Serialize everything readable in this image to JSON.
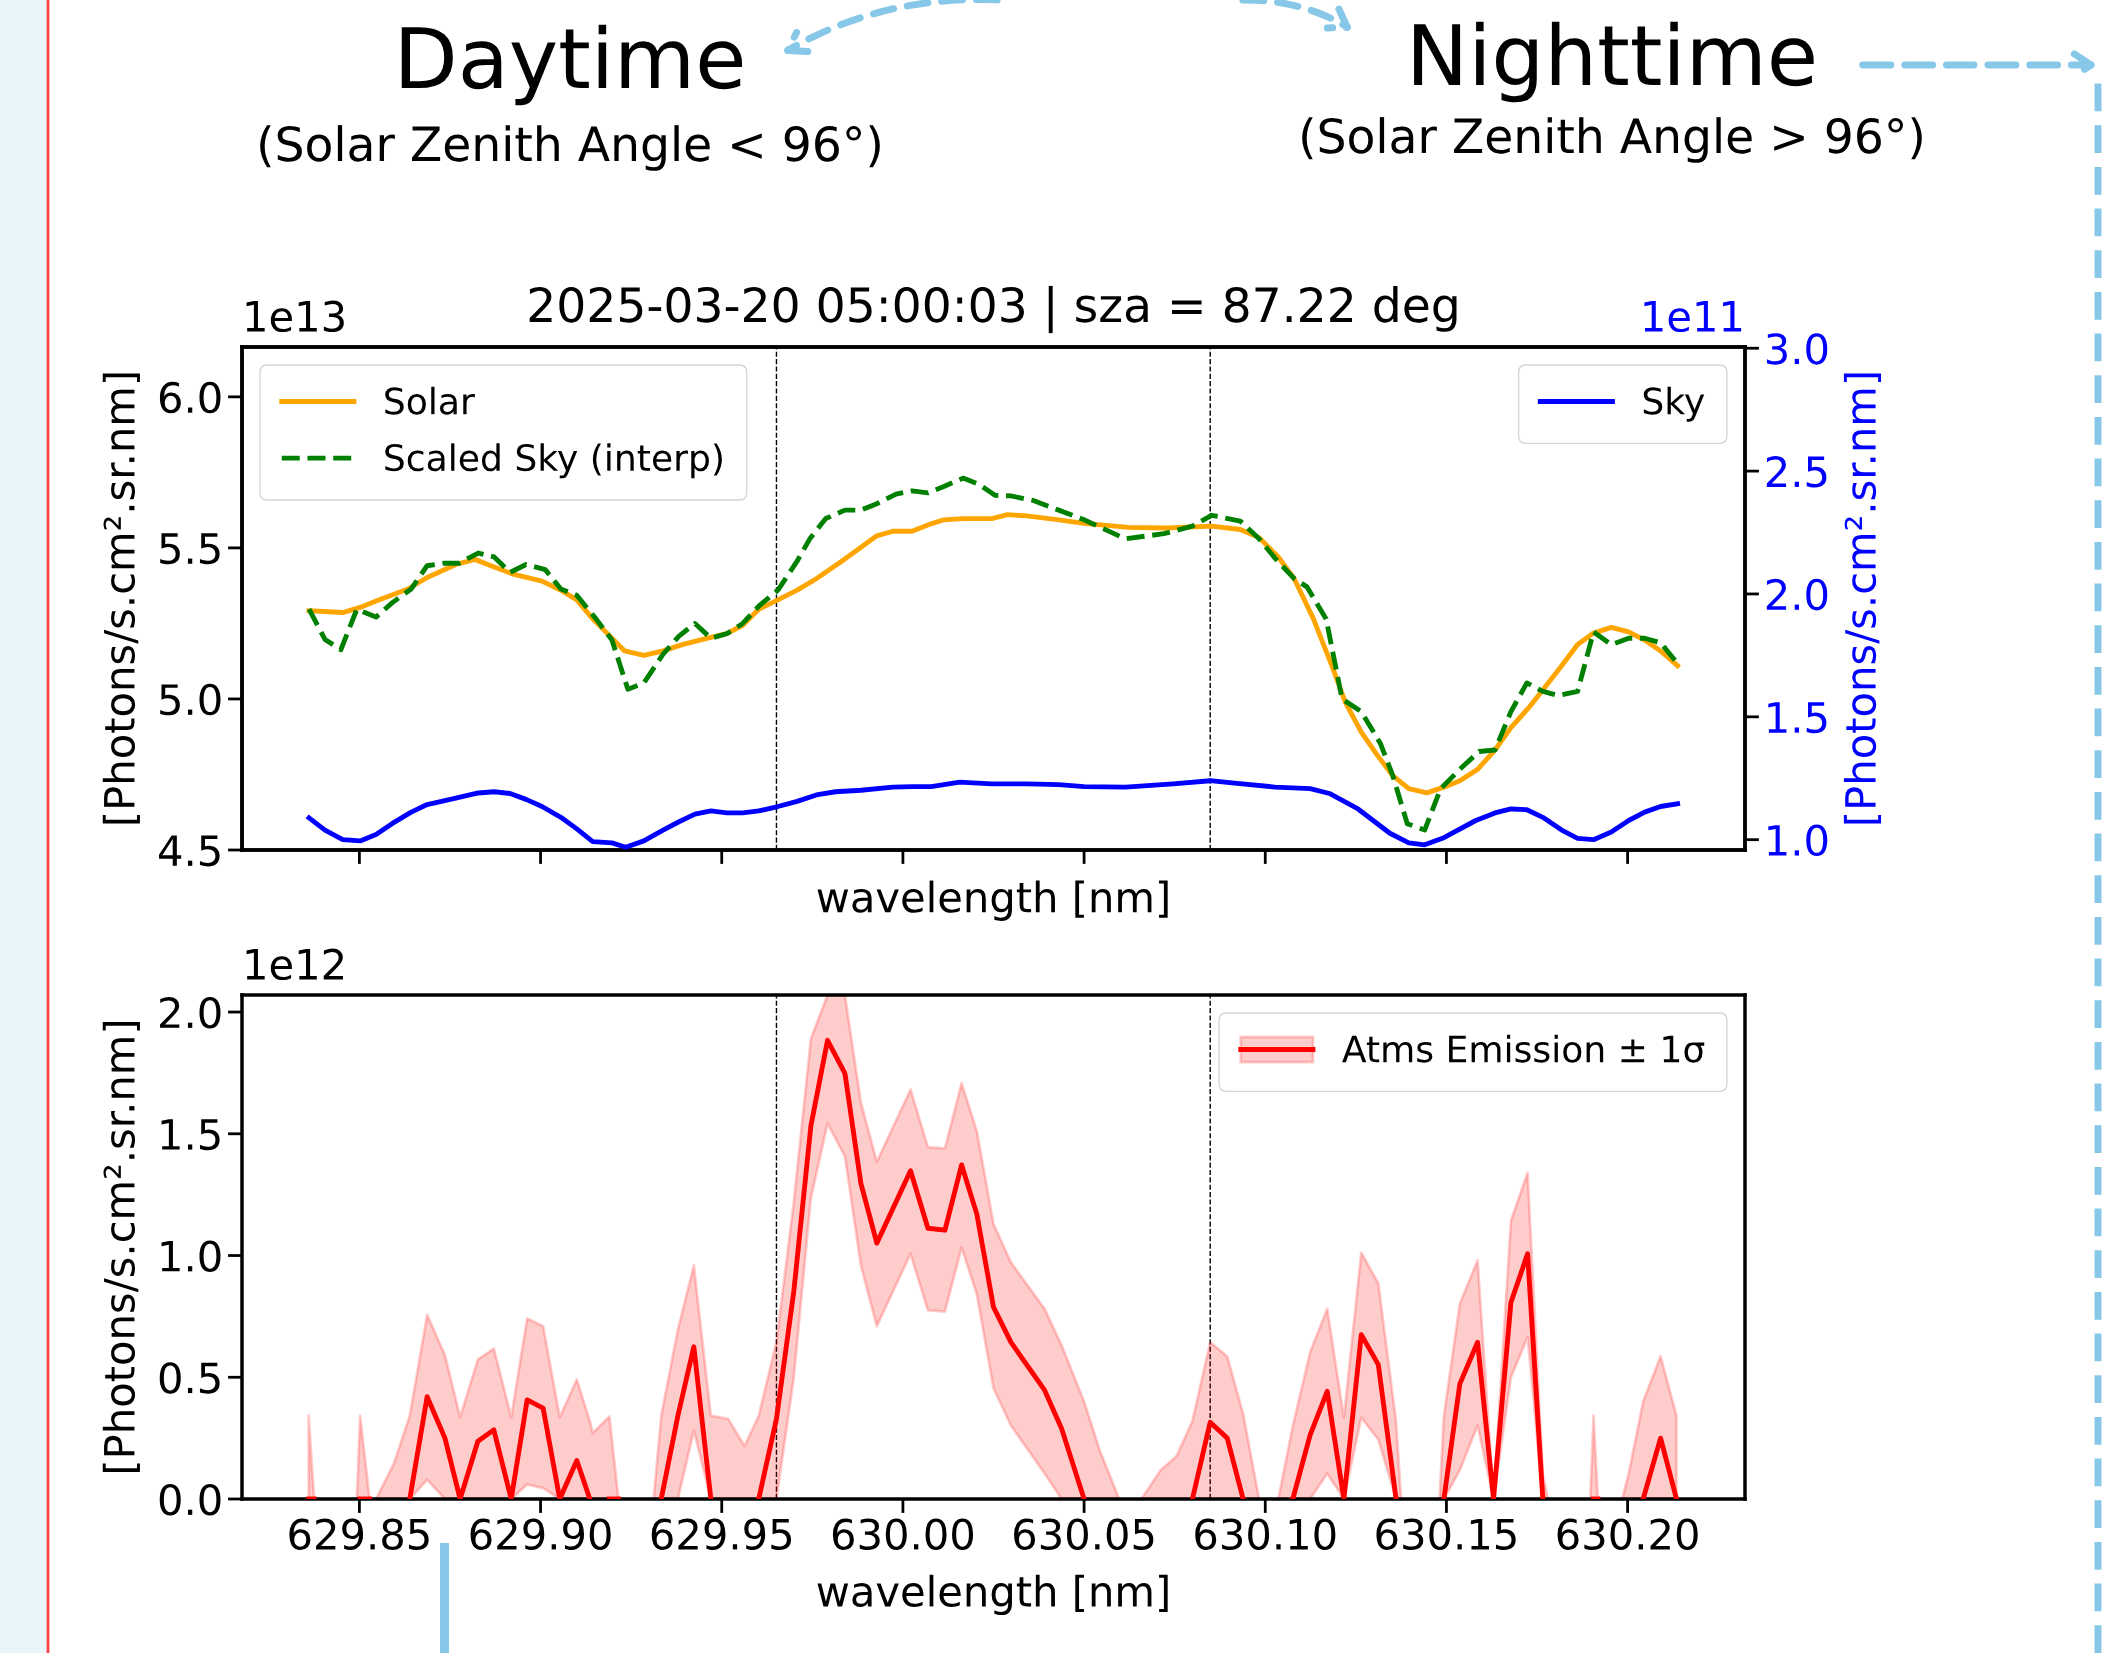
{
  "chart_data": [
    {
      "type": "line",
      "title": "2025-03-20 05:00:03 | sza = 87.22 deg",
      "xlabel": "wavelength [nm]",
      "ylabel": "[Photons/s.cm².sr.nm]",
      "y2label": "[Photons/s.cm².sr.nm]",
      "annotations": [
        "Daytime",
        "(Solar Zenith Angle < 96°)",
        "Nighttime",
        "(Solar Zenith Angle > 96°)",
        "1e13",
        "1e11"
      ],
      "xlim": [
        629.8176,
        630.2324
      ],
      "xticks": [
        {
          "value": 629.85,
          "label": null
        },
        {
          "value": 629.9,
          "label": null
        },
        {
          "value": 629.95,
          "label": null
        },
        {
          "value": 630.0,
          "label": null
        },
        {
          "value": 630.05,
          "label": null
        },
        {
          "value": 630.1,
          "label": null
        },
        {
          "value": 630.15,
          "label": null
        },
        {
          "value": 630.2,
          "label": null
        }
      ],
      "ylim": [
        4.5,
        6.165
      ],
      "yticks": [
        {
          "value": 4.5,
          "label": "4.5"
        },
        {
          "value": 5.0,
          "label": "5.0"
        },
        {
          "value": 5.5,
          "label": "5.5"
        },
        {
          "value": 6.0,
          "label": "6.0"
        }
      ],
      "y2lim": [
        0.958,
        3.005
      ],
      "y2ticks": [
        {
          "value": 1.0,
          "label": "1.0"
        },
        {
          "value": 1.5,
          "label": "1.5"
        },
        {
          "value": 2.0,
          "label": "2.0"
        },
        {
          "value": 2.5,
          "label": "2.5"
        },
        {
          "value": 3.0,
          "label": "3.0"
        }
      ],
      "tick_labels": "y",
      "grid": false,
      "legend": "top left",
      "ref_lines": [
        {
          "axis": "x",
          "value": 629.9651,
          "color": "#000000",
          "line_style": "dashed"
        },
        {
          "axis": "x",
          "value": 630.0848,
          "color": "#000000",
          "line_style": "dashed"
        }
      ],
      "series": [
        {
          "name": "Solar",
          "color": "#ffa500",
          "line_style": "solid",
          "x": [
            629.8361,
            629.8454,
            629.8502,
            629.8546,
            629.8634,
            629.8687,
            629.8766,
            629.8819,
            629.8863,
            629.8924,
            629.9004,
            629.9056,
            629.91,
            629.9144,
            629.9188,
            629.9232,
            629.9285,
            629.9338,
            629.9391,
            629.9461,
            629.9514,
            629.9558,
            629.9602,
            629.9655,
            629.9708,
            629.9761,
            629.9831,
            629.9928,
            629.9972,
            630.0025,
            630.0069,
            630.0113,
            630.0166,
            630.0245,
            630.0289,
            630.0342,
            630.043,
            630.05,
            630.0623,
            630.0728,
            630.0852,
            630.0931,
            630.0983,
            630.1036,
            630.108,
            630.1133,
            630.1185,
            630.1221,
            630.1265,
            630.1309,
            630.1352,
            630.1396,
            630.1446,
            630.1493,
            630.1537,
            630.1586,
            630.1634,
            630.1678,
            630.173,
            630.1774,
            630.1818,
            630.1862,
            630.1906,
            630.1955,
            630.2003,
            630.2047,
            630.2091,
            630.2138
          ],
          "values": [
            5.292,
            5.286,
            5.303,
            5.324,
            5.364,
            5.402,
            5.445,
            5.462,
            5.441,
            5.413,
            5.39,
            5.36,
            5.328,
            5.265,
            5.212,
            5.159,
            5.144,
            5.159,
            5.18,
            5.201,
            5.216,
            5.244,
            5.297,
            5.328,
            5.36,
            5.398,
            5.456,
            5.54,
            5.555,
            5.555,
            5.576,
            5.593,
            5.597,
            5.597,
            5.61,
            5.606,
            5.593,
            5.581,
            5.568,
            5.566,
            5.572,
            5.561,
            5.534,
            5.47,
            5.398,
            5.265,
            5.106,
            4.989,
            4.89,
            4.814,
            4.746,
            4.703,
            4.689,
            4.708,
            4.729,
            4.767,
            4.831,
            4.905,
            4.975,
            5.042,
            5.11,
            5.18,
            5.218,
            5.237,
            5.222,
            5.195,
            5.159,
            5.11
          ]
        },
        {
          "name": "Scaled Sky (interp)",
          "color": "#008000",
          "line_style": "dashed",
          "x": [
            629.8361,
            629.8405,
            629.8449,
            629.8493,
            629.8546,
            629.859,
            629.8643,
            629.8687,
            629.8731,
            629.8775,
            629.8828,
            629.8872,
            629.8916,
            629.896,
            629.9013,
            629.9056,
            629.91,
            629.9153,
            629.9197,
            629.9241,
            629.9285,
            629.9338,
            629.9382,
            629.9426,
            629.947,
            629.9514,
            629.9558,
            629.9602,
            629.9655,
            629.9708,
            629.9743,
            629.9787,
            629.984,
            629.9884,
            629.9928,
            629.9981,
            630.0025,
            630.0069,
            630.0113,
            630.0166,
            630.021,
            630.0254,
            630.0298,
            630.036,
            630.043,
            630.05,
            630.0614,
            630.072,
            630.0799,
            630.0852,
            630.0931,
            630.0983,
            630.1027,
            630.108,
            630.1115,
            630.1168,
            630.1212,
            630.1265,
            630.1318,
            630.1352,
            630.1392,
            630.144,
            630.1484,
            630.1537,
            630.159,
            630.1634,
            630.1678,
            630.1722,
            630.1766,
            630.1809,
            630.1862,
            630.1906,
            630.1955,
            630.2003,
            630.2047,
            630.2091,
            630.2138
          ],
          "values": [
            5.297,
            5.197,
            5.163,
            5.297,
            5.271,
            5.318,
            5.364,
            5.441,
            5.449,
            5.449,
            5.483,
            5.47,
            5.419,
            5.445,
            5.428,
            5.364,
            5.343,
            5.265,
            5.195,
            5.032,
            5.053,
            5.148,
            5.208,
            5.25,
            5.201,
            5.216,
            5.25,
            5.307,
            5.36,
            5.456,
            5.53,
            5.597,
            5.625,
            5.625,
            5.646,
            5.678,
            5.689,
            5.682,
            5.703,
            5.731,
            5.71,
            5.674,
            5.672,
            5.657,
            5.625,
            5.593,
            5.53,
            5.547,
            5.572,
            5.608,
            5.589,
            5.53,
            5.466,
            5.398,
            5.371,
            5.265,
            5.0,
            4.958,
            4.852,
            4.746,
            4.587,
            4.566,
            4.703,
            4.767,
            4.826,
            4.831,
            4.958,
            5.053,
            5.025,
            5.011,
            5.025,
            5.222,
            5.18,
            5.201,
            5.201,
            5.186,
            5.117
          ]
        },
        {
          "name": "Sky",
          "color": "#0000ff",
          "line_style": "solid",
          "axis": "y2",
          "x": [
            629.8361,
            629.8405,
            629.8454,
            629.8502,
            629.8546,
            629.859,
            629.8643,
            629.8687,
            629.8766,
            629.8828,
            629.8872,
            629.8916,
            629.896,
            629.9004,
            629.9056,
            629.91,
            629.9144,
            629.9197,
            629.9235,
            629.9285,
            629.9338,
            629.9382,
            629.9426,
            629.947,
            629.9514,
            629.9558,
            629.9602,
            629.9655,
            629.9708,
            629.9761,
            629.9814,
            629.9884,
            629.9972,
            630.0025,
            630.0078,
            630.0157,
            630.0245,
            630.0342,
            630.043,
            630.05,
            630.0614,
            630.0746,
            630.0848,
            630.0922,
            630.1027,
            630.1124,
            630.1177,
            630.1256,
            630.1344,
            630.1396,
            630.144,
            630.1493,
            630.1581,
            630.1634,
            630.1678,
            630.1722,
            630.1766,
            630.1818,
            630.1862,
            630.1906,
            630.1955,
            630.2003,
            630.2047,
            630.2091,
            630.2138
          ],
          "values": [
            1.089,
            1.039,
            1.0,
            0.995,
            1.021,
            1.065,
            1.112,
            1.143,
            1.169,
            1.19,
            1.195,
            1.188,
            1.164,
            1.135,
            1.091,
            1.044,
            0.992,
            0.987,
            0.969,
            0.995,
            1.039,
            1.073,
            1.104,
            1.117,
            1.109,
            1.109,
            1.117,
            1.135,
            1.156,
            1.182,
            1.195,
            1.201,
            1.214,
            1.216,
            1.216,
            1.234,
            1.227,
            1.227,
            1.224,
            1.216,
            1.214,
            1.227,
            1.24,
            1.229,
            1.214,
            1.208,
            1.188,
            1.125,
            1.026,
            0.987,
            0.979,
            1.008,
            1.078,
            1.109,
            1.125,
            1.122,
            1.091,
            1.039,
            1.005,
            1.0,
            1.031,
            1.078,
            1.112,
            1.135,
            1.146
          ]
        }
      ]
    },
    {
      "type": "line",
      "xlabel": "wavelength [nm]",
      "ylabel": "[Photons/s.cm².sr.nm]",
      "annotations": [
        "1e12"
      ],
      "xlim": [
        629.8176,
        630.2324
      ],
      "xticks": [
        {
          "value": 629.85,
          "label": "629.85"
        },
        {
          "value": 629.9,
          "label": "629.90"
        },
        {
          "value": 629.95,
          "label": "629.95"
        },
        {
          "value": 630.0,
          "label": "630.00"
        },
        {
          "value": 630.05,
          "label": "630.05"
        },
        {
          "value": 630.1,
          "label": "630.10"
        },
        {
          "value": 630.15,
          "label": "630.15"
        },
        {
          "value": 630.2,
          "label": "630.20"
        }
      ],
      "ylim": [
        0,
        2.07
      ],
      "yticks": [
        {
          "value": 0,
          "label": "0.0"
        },
        {
          "value": 0.5,
          "label": "0.5"
        },
        {
          "value": 1.0,
          "label": "1.0"
        },
        {
          "value": 1.5,
          "label": "1.5"
        },
        {
          "value": 2.0,
          "label": "2.0"
        }
      ],
      "grid": false,
      "legend": "top right",
      "ref_lines": [
        {
          "axis": "x",
          "value": 629.9651,
          "color": "#000000",
          "line_style": "dashed"
        },
        {
          "axis": "x",
          "value": 630.0848,
          "color": "#000000",
          "line_style": "dashed"
        }
      ],
      "series": [
        {
          "name": "Atms Emission ± 1σ",
          "color": "#ff0000",
          "line_style": "solid",
          "x": [
            629.836,
            629.8375,
            629.84,
            629.8493,
            629.8502,
            629.8528,
            629.853,
            629.8546,
            629.8595,
            629.8639,
            629.8687,
            629.8736,
            629.8778,
            629.8827,
            629.8871,
            629.8919,
            629.8963,
            629.9007,
            629.9053,
            629.91,
            629.9136,
            629.9144,
            629.919,
            629.9215,
            629.925,
            629.9312,
            629.9333,
            629.9379,
            629.9423,
            629.947,
            629.9518,
            629.9563,
            629.9602,
            629.9651,
            629.9699,
            629.9746,
            629.9792,
            629.984,
            629.9884,
            629.9928,
            630.0021,
            630.0069,
            630.0116,
            630.0162,
            630.0204,
            630.025,
            630.0298,
            630.0391,
            630.0438,
            630.05,
            630.0544,
            630.0597,
            630.062,
            630.0658,
            630.0711,
            630.0755,
            630.0799,
            630.0848,
            630.0895,
            630.0939,
            630.0983,
            630.1,
            630.1036,
            630.1076,
            630.1124,
            630.1171,
            630.1217,
            630.1265,
            630.1312,
            630.1361,
            630.1375,
            630.14,
            630.1481,
            630.1493,
            630.1537,
            630.1586,
            630.163,
            630.1678,
            630.1724,
            630.1766,
            630.178,
            630.185,
            630.1897,
            630.1906,
            630.1918,
            630.195,
            630.1985,
            630.2003,
            630.2043,
            630.2091,
            630.2135
          ],
          "values": [
            0,
            0,
            null,
            null,
            0,
            0,
            null,
            null,
            null,
            0,
            0.42,
            0.25,
            0,
            0.237,
            0.284,
            0,
            0.407,
            0.373,
            0,
            0.158,
            0,
            null,
            0,
            0,
            null,
            null,
            0,
            0.342,
            0.625,
            0,
            null,
            null,
            0,
            0.329,
            0.854,
            1.532,
            1.884,
            1.748,
            1.296,
            1.051,
            1.348,
            1.112,
            1.104,
            1.372,
            1.17,
            0.788,
            0.644,
            0.447,
            0.289,
            0,
            null,
            null,
            null,
            null,
            null,
            null,
            0,
            0.315,
            0.25,
            0,
            null,
            null,
            null,
            0,
            0.263,
            0.442,
            0,
            0.675,
            0.552,
            0,
            null,
            null,
            null,
            0,
            0.473,
            0.644,
            0,
            0.807,
            1.007,
            0,
            null,
            null,
            null,
            0,
            0,
            null,
            null,
            null,
            0,
            0.25,
            0
          ],
          "lower": [
            0,
            0,
            null,
            0,
            0,
            0,
            null,
            0,
            0,
            0,
            0.079,
            0,
            0,
            0,
            0,
            0,
            0.06,
            0.045,
            0,
            0,
            0,
            0,
            0,
            0,
            null,
            0,
            0,
            0,
            0.281,
            0,
            0,
            0,
            0,
            0,
            0.5,
            1.235,
            1.543,
            1.406,
            0.959,
            0.71,
            1.007,
            0.775,
            0.77,
            1.033,
            0.841,
            0.455,
            0.302,
            0.105,
            0,
            0,
            0,
            0,
            null,
            0,
            0,
            0,
            0,
            0,
            0,
            0,
            0,
            null,
            0,
            0,
            0,
            0.105,
            0,
            0.334,
            0.244,
            0,
            0,
            null,
            0,
            0,
            0.118,
            0.302,
            0,
            0.499,
            0.665,
            0,
            0,
            null,
            0,
            0,
            0,
            null,
            0,
            0,
            0,
            0,
            0
          ],
          "upper": [
            0.342,
            0,
            null,
            0,
            0.342,
            0,
            null,
            0,
            0.145,
            0.342,
            0.757,
            0.591,
            0.336,
            0.573,
            0.618,
            0.336,
            0.741,
            0.71,
            0.336,
            0.491,
            0.32,
            0.271,
            0.339,
            0,
            null,
            0,
            0.342,
            0.696,
            0.959,
            0.342,
            0.329,
            0.218,
            0.342,
            0.644,
            1.222,
            1.89,
            2.07,
            2.07,
            1.629,
            1.385,
            1.682,
            1.445,
            1.44,
            1.708,
            1.511,
            1.13,
            0.972,
            0.781,
            0.631,
            0.4,
            0.197,
            0,
            null,
            0,
            0.118,
            0.176,
            0.32,
            0.644,
            0.586,
            0.35,
            0,
            null,
            0,
            0.3,
            0.604,
            0.781,
            0.334,
            1.012,
            0.886,
            0.32,
            0,
            null,
            0,
            0.342,
            0.802,
            0.98,
            0,
            1.143,
            1.34,
            0.1,
            0,
            null,
            0,
            0.342,
            0,
            null,
            0,
            0.105,
            0.4,
            0.586,
            0.342
          ]
        }
      ]
    }
  ]
}
